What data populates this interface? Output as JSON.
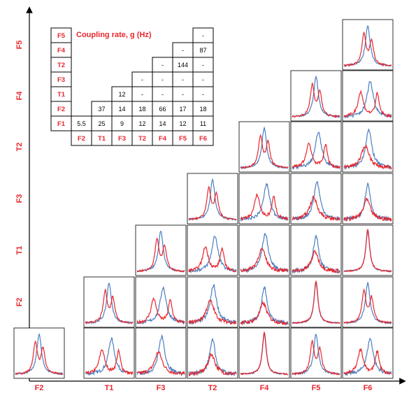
{
  "figure": {
    "table_title": "Coupling rate, g (Hz)",
    "x_labels": [
      "F2",
      "T1",
      "F3",
      "T2",
      "F4",
      "F5",
      "F6"
    ],
    "y_labels": [
      "F1",
      "F2",
      "T1",
      "F3",
      "T2",
      "F4",
      "F5"
    ],
    "table_rows": [
      {
        "label": "F5",
        "values": [
          "",
          "",
          "",
          "",
          "",
          "",
          "-"
        ]
      },
      {
        "label": "F4",
        "values": [
          "",
          "",
          "",
          "",
          "",
          "-",
          "87"
        ]
      },
      {
        "label": "T2",
        "values": [
          "",
          "",
          "",
          "",
          "-",
          "144",
          "-"
        ]
      },
      {
        "label": "F3",
        "values": [
          "",
          "",
          "",
          "-",
          "-",
          "-",
          "-"
        ]
      },
      {
        "label": "T1",
        "values": [
          "",
          "",
          "12",
          "-",
          "-",
          "-",
          "-"
        ]
      },
      {
        "label": "F2",
        "values": [
          "",
          "37",
          "14",
          "18",
          "66",
          "17",
          "18"
        ]
      },
      {
        "label": "F1",
        "values": [
          "5.5",
          "25",
          "9",
          "12",
          "14",
          "12",
          "11"
        ]
      }
    ],
    "table_cols": [
      "F2",
      "T1",
      "F3",
      "T2",
      "F4",
      "F5",
      "F6"
    ],
    "colors": {
      "red": "#e8262d",
      "blue": "#4a7fc1"
    }
  }
}
